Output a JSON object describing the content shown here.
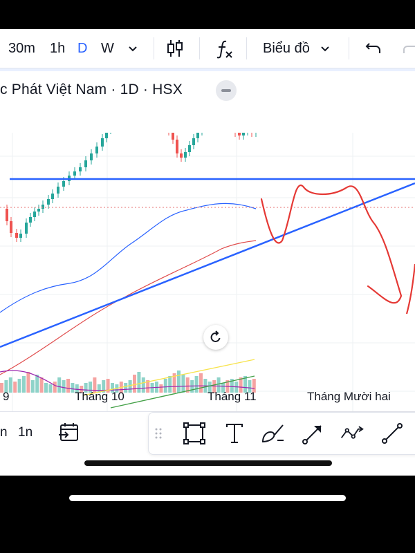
{
  "toolbar": {
    "intervals": [
      {
        "label": "30m",
        "active": false
      },
      {
        "label": "1h",
        "active": false
      },
      {
        "label": "D",
        "active": true
      },
      {
        "label": "W",
        "active": false
      }
    ],
    "chart_type_label": "Biểu đồ",
    "icons": [
      "chevron-down-icon",
      "candlestick-icon",
      "function-icon",
      "undo-icon",
      "redo-icon"
    ]
  },
  "symbol": {
    "title": "c Phát Việt Nam · 1D · HSX"
  },
  "x_axis": {
    "labels": [
      "9",
      "Tháng 10",
      "Tháng 11",
      "Tháng Mười hai"
    ]
  },
  "bottom": {
    "ranges": [
      "n",
      "1n"
    ],
    "icons": [
      "goto-date-icon"
    ],
    "draw_tools": [
      "drag-handle-icon",
      "rectangle-icon",
      "text-icon",
      "brush-icon",
      "arrow-line-icon",
      "path-icon",
      "trend-line-icon"
    ]
  },
  "colors": {
    "up": "#26a69a",
    "down": "#ef5350",
    "drawing_line": "#2962ff",
    "ma_fast": "#2962ff",
    "ma_slow": "#e04c4c",
    "freehand": "#e53935",
    "price_line": "#e57373"
  }
}
